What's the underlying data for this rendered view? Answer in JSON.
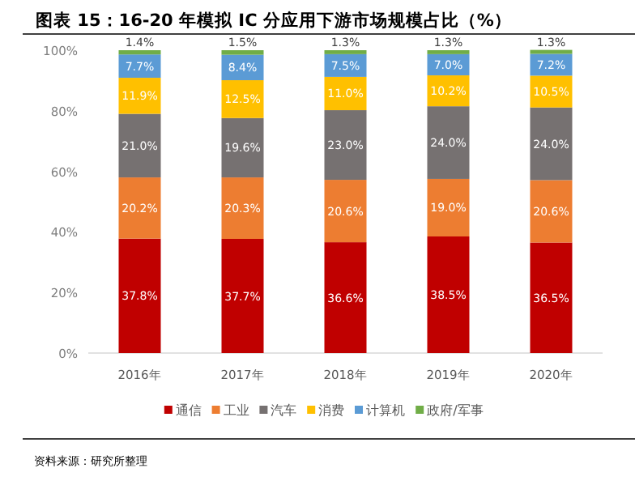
{
  "chart_data": {
    "type": "bar",
    "stacked": true,
    "title": "图表 15：16-20 年模拟 IC 分应用下游市场规模占比（%）",
    "annotations": [
      "资料来源：研究所整理"
    ],
    "categories": [
      "2016年",
      "2017年",
      "2018年",
      "2019年",
      "2020年"
    ],
    "ylim": [
      0,
      100
    ],
    "yticks": [
      {
        "value": 0,
        "label": "0%"
      },
      {
        "value": 20,
        "label": "20%"
      },
      {
        "value": 40,
        "label": "40%"
      },
      {
        "value": 60,
        "label": "60%"
      },
      {
        "value": 80,
        "label": "80%"
      },
      {
        "value": 100,
        "label": "100%"
      }
    ],
    "legend": "bottom",
    "series": [
      {
        "name": "通信",
        "color": "#c00000",
        "values": [
          37.8,
          37.7,
          36.6,
          38.5,
          36.5
        ],
        "value_labels": [
          "37.8%",
          "37.7%",
          "36.6%",
          "38.5%",
          "36.5%"
        ]
      },
      {
        "name": "工业",
        "color": "#ed7d31",
        "values": [
          20.2,
          20.3,
          20.6,
          19.0,
          20.6
        ],
        "value_labels": [
          "20.2%",
          "20.3%",
          "20.6%",
          "19.0%",
          "20.6%"
        ]
      },
      {
        "name": "汽车",
        "color": "#767171",
        "values": [
          21.0,
          19.6,
          23.0,
          24.0,
          24.0
        ],
        "value_labels": [
          "21.0%",
          "19.6%",
          "23.0%",
          "24.0%",
          "24.0%"
        ]
      },
      {
        "name": "消费",
        "color": "#ffc000",
        "values": [
          11.9,
          12.5,
          11.0,
          10.2,
          10.5
        ],
        "value_labels": [
          "11.9%",
          "12.5%",
          "11.0%",
          "10.2%",
          "10.5%"
        ]
      },
      {
        "name": "计算机",
        "color": "#5b9bd5",
        "values": [
          7.7,
          8.4,
          7.5,
          7.0,
          7.2
        ],
        "value_labels": [
          "7.7%",
          "8.4%",
          "7.5%",
          "7.0%",
          "7.2%"
        ]
      },
      {
        "name": "政府/军事",
        "color": "#70ad47",
        "values": [
          1.4,
          1.5,
          1.3,
          1.3,
          1.3
        ],
        "value_labels": [
          "1.4%",
          "1.5%",
          "1.3%",
          "1.3%",
          "1.3%"
        ]
      }
    ]
  }
}
